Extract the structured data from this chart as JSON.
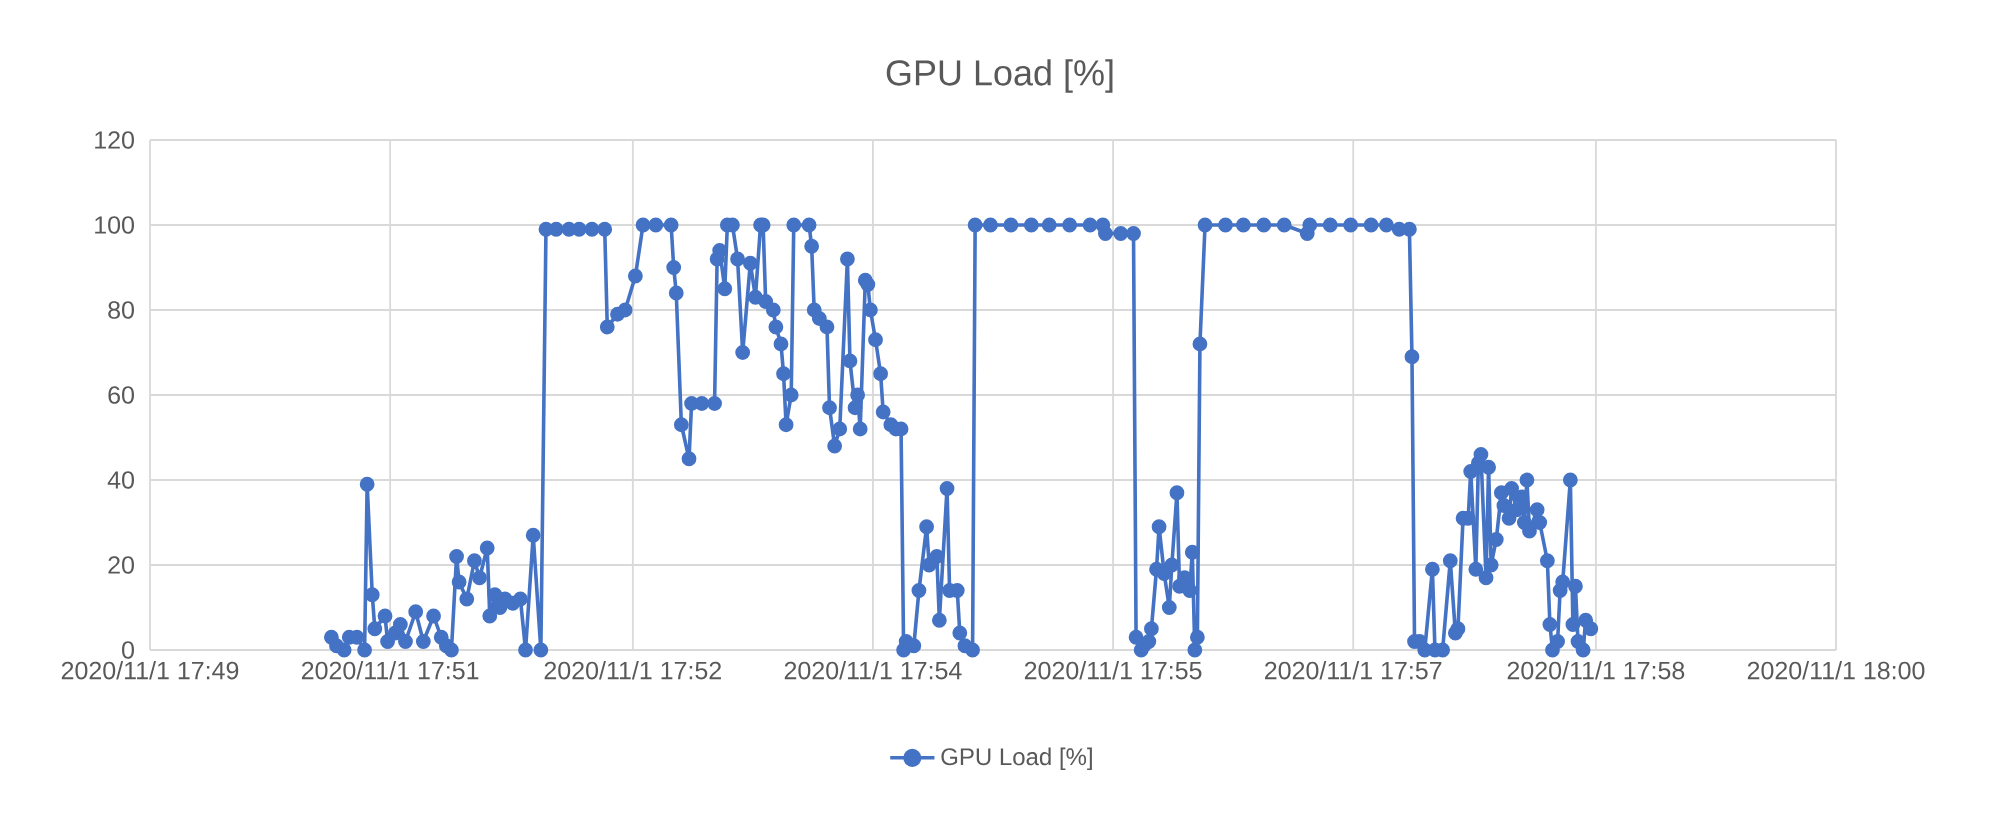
{
  "chart_data": {
    "type": "line",
    "title": "GPU Load [%]",
    "x": [
      "2020-11-01T17:50:11",
      "2020-11-01T17:50:13",
      "2020-11-01T17:50:16",
      "2020-11-01T17:50:18",
      "2020-11-01T17:50:21",
      "2020-11-01T17:50:24",
      "2020-11-01T17:50:25",
      "2020-11-01T17:50:27",
      "2020-11-01T17:50:28",
      "2020-11-01T17:50:32",
      "2020-11-01T17:50:33",
      "2020-11-01T17:50:36",
      "2020-11-01T17:50:38",
      "2020-11-01T17:50:40",
      "2020-11-01T17:50:44",
      "2020-11-01T17:50:47",
      "2020-11-01T17:50:51",
      "2020-11-01T17:50:54",
      "2020-11-01T17:50:56",
      "2020-11-01T17:50:58",
      "2020-11-01T17:51:00",
      "2020-11-01T17:51:01",
      "2020-11-01T17:51:04",
      "2020-11-01T17:51:07",
      "2020-11-01T17:51:09",
      "2020-11-01T17:51:12",
      "2020-11-01T17:51:13",
      "2020-11-01T17:51:15",
      "2020-11-01T17:51:17",
      "2020-11-01T17:51:19",
      "2020-11-01T17:51:22",
      "2020-11-01T17:51:25",
      "2020-11-01T17:51:27",
      "2020-11-01T17:51:30",
      "2020-11-01T17:51:33",
      "2020-11-01T17:51:35",
      "2020-11-01T17:51:39",
      "2020-11-01T17:51:44",
      "2020-11-01T17:51:48",
      "2020-11-01T17:51:53",
      "2020-11-01T17:51:58",
      "2020-11-01T17:51:59",
      "2020-11-01T17:52:03",
      "2020-11-01T17:52:06",
      "2020-11-01T17:52:10",
      "2020-11-01T17:52:13",
      "2020-11-01T17:52:18",
      "2020-11-01T17:52:24",
      "2020-11-01T17:52:25",
      "2020-11-01T17:52:26",
      "2020-11-01T17:52:28",
      "2020-11-01T17:52:31",
      "2020-11-01T17:52:32",
      "2020-11-01T17:52:36",
      "2020-11-01T17:52:41",
      "2020-11-01T17:52:42",
      "2020-11-01T17:52:43",
      "2020-11-01T17:52:45",
      "2020-11-01T17:52:46",
      "2020-11-01T17:52:48",
      "2020-11-01T17:52:50",
      "2020-11-01T17:52:52",
      "2020-11-01T17:52:55",
      "2020-11-01T17:52:57",
      "2020-11-01T17:52:59",
      "2020-11-01T17:53:00",
      "2020-11-01T17:53:01",
      "2020-11-01T17:53:04",
      "2020-11-01T17:53:05",
      "2020-11-01T17:53:07",
      "2020-11-01T17:53:08",
      "2020-11-01T17:53:09",
      "2020-11-01T17:53:11",
      "2020-11-01T17:53:12",
      "2020-11-01T17:53:18",
      "2020-11-01T17:53:19",
      "2020-11-01T17:53:20",
      "2020-11-01T17:53:22",
      "2020-11-01T17:53:25",
      "2020-11-01T17:53:26",
      "2020-11-01T17:53:28",
      "2020-11-01T17:53:30",
      "2020-11-01T17:53:33",
      "2020-11-01T17:53:34",
      "2020-11-01T17:53:36",
      "2020-11-01T17:53:37",
      "2020-11-01T17:53:38",
      "2020-11-01T17:53:40",
      "2020-11-01T17:53:41",
      "2020-11-01T17:53:42",
      "2020-11-01T17:53:44",
      "2020-11-01T17:53:46",
      "2020-11-01T17:53:47",
      "2020-11-01T17:53:50",
      "2020-11-01T17:53:52",
      "2020-11-01T17:53:54",
      "2020-11-01T17:53:55",
      "2020-11-01T17:53:56",
      "2020-11-01T17:53:59",
      "2020-11-01T17:54:01",
      "2020-11-01T17:54:04",
      "2020-11-01T17:54:05",
      "2020-11-01T17:54:08",
      "2020-11-01T17:54:09",
      "2020-11-01T17:54:12",
      "2020-11-01T17:54:13",
      "2020-11-01T17:54:16",
      "2020-11-01T17:54:17",
      "2020-11-01T17:54:19",
      "2020-11-01T17:54:22",
      "2020-11-01T17:54:23",
      "2020-11-01T17:54:29",
      "2020-11-01T17:54:37",
      "2020-11-01T17:54:45",
      "2020-11-01T17:54:52",
      "2020-11-01T17:55:00",
      "2020-11-01T17:55:08",
      "2020-11-01T17:55:13",
      "2020-11-01T17:55:14",
      "2020-11-01T17:55:20",
      "2020-11-01T17:55:25",
      "2020-11-01T17:55:26",
      "2020-11-01T17:55:28",
      "2020-11-01T17:55:29",
      "2020-11-01T17:55:31",
      "2020-11-01T17:55:32",
      "2020-11-01T17:55:34",
      "2020-11-01T17:55:35",
      "2020-11-01T17:55:37",
      "2020-11-01T17:55:39",
      "2020-11-01T17:55:40",
      "2020-11-01T17:55:42",
      "2020-11-01T17:55:43",
      "2020-11-01T17:55:45",
      "2020-11-01T17:55:47",
      "2020-11-01T17:55:48",
      "2020-11-01T17:55:49",
      "2020-11-01T17:55:50",
      "2020-11-01T17:55:51",
      "2020-11-01T17:55:53",
      "2020-11-01T17:56:01",
      "2020-11-01T17:56:08",
      "2020-11-01T17:56:16",
      "2020-11-01T17:56:24",
      "2020-11-01T17:56:33",
      "2020-11-01T17:56:34",
      "2020-11-01T17:56:42",
      "2020-11-01T17:56:50",
      "2020-11-01T17:56:58",
      "2020-11-01T17:57:04",
      "2020-11-01T17:57:09",
      "2020-11-01T17:57:13",
      "2020-11-01T17:57:14",
      "2020-11-01T17:57:15",
      "2020-11-01T17:57:17",
      "2020-11-01T17:57:19",
      "2020-11-01T17:57:22",
      "2020-11-01T17:57:23",
      "2020-11-01T17:57:26",
      "2020-11-01T17:57:29",
      "2020-11-01T17:57:31",
      "2020-11-01T17:57:32",
      "2020-11-01T17:57:34",
      "2020-11-01T17:57:36",
      "2020-11-01T17:57:37",
      "2020-11-01T17:57:39",
      "2020-11-01T17:57:40",
      "2020-11-01T17:57:41",
      "2020-11-01T17:57:43",
      "2020-11-01T17:57:44",
      "2020-11-01T17:57:45",
      "2020-11-01T17:57:47",
      "2020-11-01T17:57:49",
      "2020-11-01T17:57:50",
      "2020-11-01T17:57:52",
      "2020-11-01T17:57:53",
      "2020-11-01T17:57:55",
      "2020-11-01T17:57:57",
      "2020-11-01T17:57:58",
      "2020-11-01T17:57:59",
      "2020-11-01T17:58:00",
      "2020-11-01T17:58:03",
      "2020-11-01T17:58:04",
      "2020-11-01T17:58:07",
      "2020-11-01T17:58:08",
      "2020-11-01T17:58:09",
      "2020-11-01T17:58:11",
      "2020-11-01T17:58:12",
      "2020-11-01T17:58:13",
      "2020-11-01T17:58:16",
      "2020-11-01T17:58:17",
      "2020-11-01T17:58:18",
      "2020-11-01T17:58:19",
      "2020-11-01T17:58:21",
      "2020-11-01T17:58:22",
      "2020-11-01T17:58:24"
    ],
    "series": [
      {
        "name": "GPU Load [%]",
        "color": "#4472c4",
        "values": [
          3,
          1,
          0,
          3,
          3,
          0,
          39,
          13,
          5,
          8,
          2,
          4,
          6,
          2,
          9,
          2,
          8,
          3,
          1,
          0,
          22,
          16,
          12,
          21,
          17,
          24,
          8,
          13,
          10,
          12,
          11,
          12,
          0,
          27,
          0,
          99,
          99,
          99,
          99,
          99,
          99,
          76,
          79,
          80,
          88,
          100,
          100,
          100,
          90,
          84,
          53,
          45,
          58,
          58,
          58,
          92,
          94,
          85,
          100,
          100,
          92,
          70,
          91,
          83,
          100,
          100,
          82,
          80,
          76,
          72,
          65,
          53,
          60,
          100,
          100,
          95,
          80,
          78,
          76,
          57,
          48,
          52,
          92,
          68,
          57,
          60,
          52,
          87,
          86,
          80,
          73,
          65,
          56,
          53,
          52,
          52,
          0,
          2,
          1,
          14,
          29,
          20,
          22,
          7,
          38,
          14,
          14,
          4,
          1,
          0,
          100,
          100,
          100,
          100,
          100,
          100,
          100,
          100,
          98,
          98,
          98,
          3,
          0,
          1,
          2,
          5,
          19,
          29,
          18,
          10,
          20,
          37,
          15,
          17,
          14,
          23,
          0,
          3,
          72,
          100,
          100,
          100,
          100,
          100,
          98,
          100,
          100,
          100,
          100,
          100,
          99,
          99,
          69,
          2,
          2,
          0,
          19,
          0,
          0,
          21,
          4,
          5,
          31,
          31,
          42,
          19,
          44,
          46,
          17,
          43,
          20,
          26,
          37,
          34,
          31,
          38,
          33,
          36,
          30,
          40,
          28,
          33,
          30,
          21,
          6,
          0,
          2,
          14,
          16,
          40,
          6,
          15,
          2,
          0,
          7,
          5
        ]
      }
    ],
    "xlim": [
      "2020-11-01T17:49:00",
      "2020-11-01T18:00:00"
    ],
    "xticks": [
      {
        "value": "2020-11-01T17:49:00",
        "label": "2020/11/1 17:49"
      },
      {
        "value": "2020-11-01T17:50:34",
        "label": "2020/11/1 17:51"
      },
      {
        "value": "2020-11-01T17:52:09",
        "label": "2020/11/1 17:52"
      },
      {
        "value": "2020-11-01T17:53:43",
        "label": "2020/11/1 17:54"
      },
      {
        "value": "2020-11-01T17:55:17",
        "label": "2020/11/1 17:55"
      },
      {
        "value": "2020-11-01T17:56:51",
        "label": "2020/11/1 17:57"
      },
      {
        "value": "2020-11-01T17:58:26",
        "label": "2020/11/1 17:58"
      },
      {
        "value": "2020-11-01T18:00:00",
        "label": "2020/11/1 18:00"
      }
    ],
    "ylim": [
      0,
      120
    ],
    "yticks": [
      0,
      20,
      40,
      60,
      80,
      100,
      120
    ],
    "grid": true,
    "legend": "bottom",
    "marker": "circle",
    "line_style": "solid"
  }
}
